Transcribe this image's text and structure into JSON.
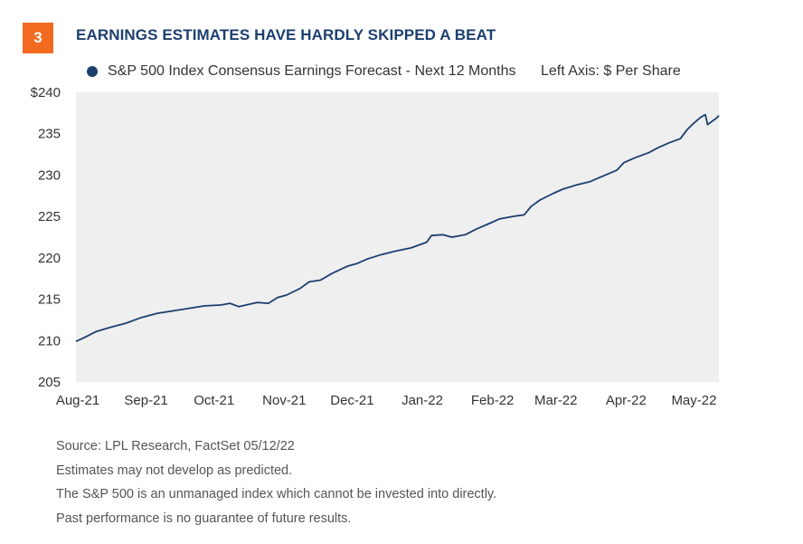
{
  "figure": {
    "number": "3",
    "title": "EARNINGS ESTIMATES HAVE HARDLY SKIPPED A BEAT",
    "legend_label": "S&P 500 Index Consensus Earnings Forecast - Next 12 Months",
    "axis_note": "Left Axis: $ Per Share",
    "source": "Source: LPL Research, FactSet  05/12/22",
    "disclaimers": [
      "Estimates may not develop as predicted.",
      "The S&P 500 is an unmanaged index which cannot be invested into directly.",
      "Past performance is no guarantee of future results."
    ],
    "badge_color": "#f26b21",
    "title_color": "#1c3f6e",
    "line_color": "#1c3f6e",
    "plot_background": "#efeff0"
  },
  "chart_data": {
    "type": "line",
    "title": "EARNINGS ESTIMATES HAVE HARDLY SKIPPED A BEAT",
    "ylabel": "Left Axis: $ Per Share",
    "ylim": [
      205,
      240
    ],
    "yticks": [
      205,
      210,
      215,
      220,
      225,
      230,
      235,
      240
    ],
    "ytick_labels": [
      "205",
      "210",
      "215",
      "220",
      "225",
      "230",
      "235",
      "$240"
    ],
    "xlim": [
      "2021-08-01",
      "2022-05-12"
    ],
    "xticks": [
      "2021-08-01",
      "2021-09-01",
      "2021-10-01",
      "2021-11-01",
      "2021-12-01",
      "2022-01-01",
      "2022-02-01",
      "2022-03-01",
      "2022-04-01",
      "2022-05-01"
    ],
    "xtick_labels": [
      "Aug-21",
      "Sep-21",
      "Oct-21",
      "Nov-21",
      "Dec-21",
      "Jan-22",
      "Feb-22",
      "Mar-22",
      "Apr-22",
      "May-22"
    ],
    "grid": false,
    "legend_position": "top",
    "series": [
      {
        "name": "S&P 500 Index Consensus Earnings Forecast - Next 12 Months",
        "color": "#1c3f6e",
        "points": [
          [
            "2021-08-01",
            209.9
          ],
          [
            "2021-08-05",
            210.4
          ],
          [
            "2021-08-10",
            211.1
          ],
          [
            "2021-08-16",
            211.6
          ],
          [
            "2021-08-23",
            212.1
          ],
          [
            "2021-08-30",
            212.8
          ],
          [
            "2021-09-06",
            213.3
          ],
          [
            "2021-09-13",
            213.6
          ],
          [
            "2021-09-20",
            213.9
          ],
          [
            "2021-09-27",
            214.2
          ],
          [
            "2021-10-04",
            214.3
          ],
          [
            "2021-10-08",
            214.5
          ],
          [
            "2021-10-12",
            214.1
          ],
          [
            "2021-10-15",
            214.3
          ],
          [
            "2021-10-20",
            214.6
          ],
          [
            "2021-10-25",
            214.5
          ],
          [
            "2021-10-29",
            215.2
          ],
          [
            "2021-11-02",
            215.5
          ],
          [
            "2021-11-08",
            216.3
          ],
          [
            "2021-11-12",
            217.1
          ],
          [
            "2021-11-17",
            217.3
          ],
          [
            "2021-11-22",
            218.1
          ],
          [
            "2021-11-29",
            219.0
          ],
          [
            "2021-12-03",
            219.3
          ],
          [
            "2021-12-08",
            219.9
          ],
          [
            "2021-12-14",
            220.4
          ],
          [
            "2021-12-20",
            220.8
          ],
          [
            "2021-12-27",
            221.2
          ],
          [
            "2022-01-03",
            221.9
          ],
          [
            "2022-01-05",
            222.7
          ],
          [
            "2022-01-10",
            222.8
          ],
          [
            "2022-01-14",
            222.5
          ],
          [
            "2022-01-20",
            222.8
          ],
          [
            "2022-01-25",
            223.5
          ],
          [
            "2022-01-31",
            224.2
          ],
          [
            "2022-02-04",
            224.7
          ],
          [
            "2022-02-10",
            225.0
          ],
          [
            "2022-02-15",
            225.2
          ],
          [
            "2022-02-18",
            226.2
          ],
          [
            "2022-02-22",
            227.0
          ],
          [
            "2022-02-28",
            227.8
          ],
          [
            "2022-03-04",
            228.3
          ],
          [
            "2022-03-10",
            228.8
          ],
          [
            "2022-03-16",
            229.2
          ],
          [
            "2022-03-22",
            229.9
          ],
          [
            "2022-03-28",
            230.6
          ],
          [
            "2022-03-31",
            231.5
          ],
          [
            "2022-04-05",
            232.1
          ],
          [
            "2022-04-11",
            232.7
          ],
          [
            "2022-04-15",
            233.3
          ],
          [
            "2022-04-20",
            233.9
          ],
          [
            "2022-04-25",
            234.4
          ],
          [
            "2022-04-28",
            235.5
          ],
          [
            "2022-05-01",
            236.3
          ],
          [
            "2022-05-04",
            237.0
          ],
          [
            "2022-05-06",
            237.3
          ],
          [
            "2022-05-07",
            236.1
          ],
          [
            "2022-05-09",
            236.5
          ],
          [
            "2022-05-11",
            236.9
          ],
          [
            "2022-05-12",
            237.2
          ]
        ]
      }
    ]
  }
}
